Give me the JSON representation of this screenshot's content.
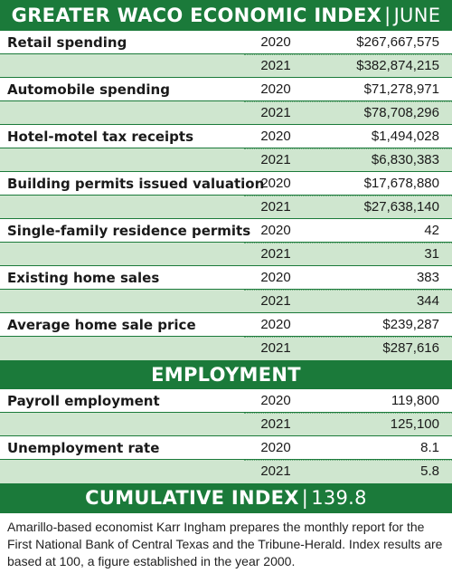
{
  "header": {
    "title": "GREATER WACO ECONOMIC INDEX",
    "separator": "|",
    "month": "JUNE"
  },
  "economic_metrics": [
    {
      "label": "Retail spending",
      "rows": [
        {
          "year": "2020",
          "value": "$267,667,575"
        },
        {
          "year": "2021",
          "value": "$382,874,215"
        }
      ]
    },
    {
      "label": "Automobile spending",
      "rows": [
        {
          "year": "2020",
          "value": "$71,278,971"
        },
        {
          "year": "2021",
          "value": "$78,708,296"
        }
      ]
    },
    {
      "label": "Hotel-motel tax receipts",
      "rows": [
        {
          "year": "2020",
          "value": "$1,494,028"
        },
        {
          "year": "2021",
          "value": "$6,830,383"
        }
      ]
    },
    {
      "label": "Building permits issued valuation",
      "rows": [
        {
          "year": "2020",
          "value": "$17,678,880"
        },
        {
          "year": "2021",
          "value": "$27,638,140"
        }
      ]
    },
    {
      "label": "Single-family residence permits",
      "rows": [
        {
          "year": "2020",
          "value": "42"
        },
        {
          "year": "2021",
          "value": "31"
        }
      ]
    },
    {
      "label": "Existing home sales",
      "rows": [
        {
          "year": "2020",
          "value": "383"
        },
        {
          "year": "2021",
          "value": "344"
        }
      ]
    },
    {
      "label": "Average home sale price",
      "rows": [
        {
          "year": "2020",
          "value": "$239,287"
        },
        {
          "year": "2021",
          "value": "$287,616"
        }
      ]
    }
  ],
  "employment": {
    "title": "EMPLOYMENT",
    "metrics": [
      {
        "label": "Payroll employment",
        "rows": [
          {
            "year": "2020",
            "value": "119,800"
          },
          {
            "year": "2021",
            "value": "125,100"
          }
        ]
      },
      {
        "label": "Unemployment rate",
        "rows": [
          {
            "year": "2020",
            "value": "8.1"
          },
          {
            "year": "2021",
            "value": "5.8"
          }
        ]
      }
    ]
  },
  "cumulative": {
    "title": "CUMULATIVE INDEX",
    "separator": "|",
    "value": "139.8"
  },
  "footnote": "Amarillo-based economist Karr Ingham prepares the monthly report for the First National Bank of Central Texas and the Tribune-Herald. Index results are based at 100, a figure established in the year 2000.",
  "colors": {
    "brand_green": "#1b7a3a",
    "row_tint": "#cfe6cf"
  }
}
